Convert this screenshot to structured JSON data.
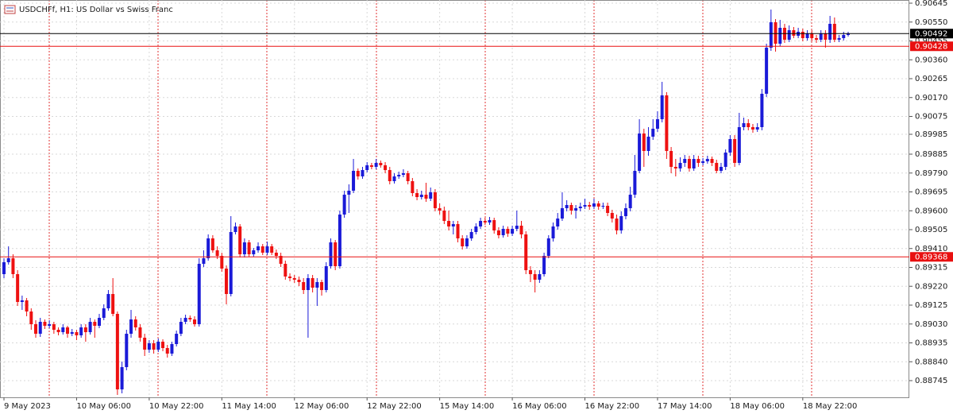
{
  "chart_data": {
    "type": "candlestick",
    "title": "USDCHFf, H1:  US Dollar vs Swiss Franc",
    "up_color": "#1a1ad8",
    "down_color": "#ee1111",
    "grid": true,
    "ylim": [
      0.88661,
      0.90661
    ],
    "yticks": [
      0.90645,
      {
        "value": 0.9055,
        "label": "0.90550"
      },
      0.90455,
      {
        "value": 0.9036,
        "label": "0.90360"
      },
      0.90265,
      {
        "value": 0.9017,
        "label": "0.90170"
      },
      0.90075,
      0.89985,
      0.89885,
      {
        "value": 0.8979,
        "label": "0.89790"
      },
      0.89695,
      {
        "value": 0.896,
        "label": "0.89600"
      },
      0.89505,
      {
        "value": 0.8941,
        "label": "0.89410"
      },
      0.89315,
      {
        "value": 0.8922,
        "label": "0.89220"
      },
      0.89125,
      {
        "value": 0.8903,
        "label": "0.89030"
      },
      0.88935,
      {
        "value": 0.8884,
        "label": "0.88840"
      },
      0.88745
    ],
    "price_lines": [
      {
        "value": 0.90492,
        "color": "#000000"
      },
      {
        "value": 0.90428,
        "color": "#e81010"
      },
      {
        "value": 0.89368,
        "color": "#e81010"
      }
    ],
    "categories": [
      "9 May 2023",
      null,
      null,
      null,
      null,
      null,
      null,
      null,
      null,
      null,
      null,
      null,
      null,
      null,
      null,
      null,
      "10 May 06:00",
      null,
      null,
      null,
      null,
      null,
      null,
      null,
      null,
      null,
      null,
      null,
      null,
      null,
      null,
      null,
      "10 May 22:00",
      null,
      null,
      null,
      null,
      null,
      null,
      null,
      null,
      null,
      null,
      null,
      null,
      null,
      null,
      null,
      "11 May 14:00",
      null,
      null,
      null,
      null,
      null,
      null,
      null,
      null,
      null,
      null,
      null,
      null,
      null,
      null,
      null,
      "12 May 06:00",
      null,
      null,
      null,
      null,
      null,
      null,
      null,
      null,
      null,
      null,
      null,
      null,
      null,
      null,
      null,
      "12 May 22:00",
      null,
      null,
      null,
      null,
      null,
      null,
      null,
      null,
      null,
      null,
      null,
      null,
      null,
      null,
      null,
      "15 May 14:00",
      null,
      null,
      null,
      null,
      null,
      null,
      null,
      null,
      null,
      null,
      null,
      null,
      null,
      null,
      null,
      "16 May 06:00",
      null,
      null,
      null,
      null,
      null,
      null,
      null,
      null,
      null,
      null,
      null,
      null,
      null,
      null,
      null,
      "16 May 22:00",
      null,
      null,
      null,
      null,
      null,
      null,
      null,
      null,
      null,
      null,
      null,
      null,
      null,
      null,
      null,
      "17 May 14:00",
      null,
      null,
      null,
      null,
      null,
      null,
      null,
      null,
      null,
      null,
      null,
      null,
      null,
      null,
      null,
      "18 May 06:00",
      null,
      null,
      null,
      null,
      null,
      null,
      null,
      null,
      null,
      null,
      null,
      null,
      null,
      null,
      null,
      "18 May 22:00",
      null,
      null,
      null,
      null,
      null,
      null,
      null,
      null,
      null,
      null
    ],
    "candles": [
      [
        0.89281,
        0.89361,
        0.89261,
        0.89341
      ],
      [
        0.89341,
        0.89421,
        0.89329,
        0.89361
      ],
      [
        0.89361,
        0.89381,
        0.89261,
        0.89281
      ],
      [
        0.89281,
        0.89301,
        0.89121,
        0.89141
      ],
      [
        0.89141,
        0.89173,
        0.89101,
        0.89149
      ],
      [
        0.89149,
        0.89161,
        0.89069,
        0.89093
      ],
      [
        0.89093,
        0.89109,
        0.89001,
        0.89029
      ],
      [
        0.89029,
        0.89049,
        0.88961,
        0.88981
      ],
      [
        0.88981,
        0.89061,
        0.88965,
        0.89041
      ],
      [
        0.89041,
        0.89053,
        0.89005,
        0.89021
      ],
      [
        0.89021,
        0.89049,
        0.89009,
        0.89029
      ],
      [
        0.89029,
        0.89041,
        0.88981,
        0.89001
      ],
      [
        0.89001,
        0.89013,
        0.88973,
        0.88989
      ],
      [
        0.88989,
        0.89029,
        0.88977,
        0.89013
      ],
      [
        0.89013,
        0.89021,
        0.88961,
        0.88981
      ],
      [
        0.88981,
        0.89005,
        0.88969,
        0.88989
      ],
      [
        0.88989,
        0.89001,
        0.88949,
        0.88973
      ],
      [
        0.88973,
        0.89029,
        0.88961,
        0.89013
      ],
      [
        0.89013,
        0.89029,
        0.88941,
        0.88989
      ],
      [
        0.88989,
        0.89061,
        0.88977,
        0.89041
      ],
      [
        0.89041,
        0.89053,
        0.88961,
        0.89021
      ],
      [
        0.89021,
        0.89081,
        0.89009,
        0.89061
      ],
      [
        0.89061,
        0.89129,
        0.89049,
        0.89109
      ],
      [
        0.89109,
        0.89201,
        0.89097,
        0.89181
      ],
      [
        0.89181,
        0.89261,
        0.89069,
        0.89081
      ],
      [
        0.89081,
        0.89093,
        0.88673,
        0.88701
      ],
      [
        0.88701,
        0.88841,
        0.88681,
        0.88813
      ],
      [
        0.88813,
        0.89001,
        0.88797,
        0.88981
      ],
      [
        0.88981,
        0.89101,
        0.88961,
        0.89053
      ],
      [
        0.89053,
        0.89069,
        0.88997,
        0.89013
      ],
      [
        0.89013,
        0.89029,
        0.88941,
        0.88961
      ],
      [
        0.88961,
        0.88981,
        0.88869,
        0.88901
      ],
      [
        0.88901,
        0.88949,
        0.88885,
        0.88933
      ],
      [
        0.88933,
        0.88949,
        0.88881,
        0.88901
      ],
      [
        0.88901,
        0.88957,
        0.88889,
        0.88941
      ],
      [
        0.88941,
        0.88953,
        0.88893,
        0.88909
      ],
      [
        0.88909,
        0.88925,
        0.88861,
        0.88881
      ],
      [
        0.88881,
        0.88941,
        0.88869,
        0.88929
      ],
      [
        0.88929,
        0.88997,
        0.88917,
        0.88981
      ],
      [
        0.88981,
        0.89061,
        0.88969,
        0.89041
      ],
      [
        0.89041,
        0.89077,
        0.89029,
        0.89061
      ],
      [
        0.89061,
        0.89073,
        0.89041,
        0.89053
      ],
      [
        0.89053,
        0.89069,
        0.89017,
        0.89029
      ],
      [
        0.89029,
        0.89361,
        0.89017,
        0.89333
      ],
      [
        0.89333,
        0.89401,
        0.89317,
        0.89361
      ],
      [
        0.89361,
        0.89481,
        0.89349,
        0.89461
      ],
      [
        0.89461,
        0.89477,
        0.89389,
        0.89401
      ],
      [
        0.89401,
        0.89421,
        0.89357,
        0.89373
      ],
      [
        0.89373,
        0.89389,
        0.89293,
        0.89309
      ],
      [
        0.89309,
        0.89325,
        0.89129,
        0.89181
      ],
      [
        0.89181,
        0.89573,
        0.89169,
        0.89493
      ],
      [
        0.89493,
        0.89541,
        0.89481,
        0.89521
      ],
      [
        0.89521,
        0.89533,
        0.89365,
        0.89381
      ],
      [
        0.89381,
        0.89461,
        0.89365,
        0.89441
      ],
      [
        0.89441,
        0.89453,
        0.89369,
        0.89381
      ],
      [
        0.89381,
        0.89413,
        0.89369,
        0.89401
      ],
      [
        0.89401,
        0.89441,
        0.89389,
        0.89421
      ],
      [
        0.89421,
        0.89433,
        0.89377,
        0.89389
      ],
      [
        0.89389,
        0.89445,
        0.89377,
        0.89421
      ],
      [
        0.89421,
        0.89433,
        0.89377,
        0.89389
      ],
      [
        0.89389,
        0.89405,
        0.89357,
        0.89373
      ],
      [
        0.89373,
        0.89389,
        0.89317,
        0.89333
      ],
      [
        0.89333,
        0.89349,
        0.89253,
        0.89269
      ],
      [
        0.89269,
        0.89285,
        0.89245,
        0.89261
      ],
      [
        0.89261,
        0.89277,
        0.89237,
        0.89253
      ],
      [
        0.89253,
        0.89269,
        0.89221,
        0.89241
      ],
      [
        0.89241,
        0.89261,
        0.89181,
        0.89201
      ],
      [
        0.89201,
        0.89281,
        0.88961,
        0.89261
      ],
      [
        0.89261,
        0.89277,
        0.89189,
        0.89213
      ],
      [
        0.89213,
        0.89261,
        0.89121,
        0.89241
      ],
      [
        0.89241,
        0.89253,
        0.89173,
        0.89201
      ],
      [
        0.89201,
        0.89341,
        0.89189,
        0.89321
      ],
      [
        0.89321,
        0.89461,
        0.89309,
        0.89441
      ],
      [
        0.89441,
        0.89453,
        0.89301,
        0.89321
      ],
      [
        0.89321,
        0.89601,
        0.89309,
        0.89581
      ],
      [
        0.89581,
        0.89701,
        0.89565,
        0.89681
      ],
      [
        0.89681,
        0.89733,
        0.89589,
        0.89701
      ],
      [
        0.89701,
        0.89861,
        0.89689,
        0.89801
      ],
      [
        0.89801,
        0.89813,
        0.89757,
        0.89773
      ],
      [
        0.89773,
        0.89821,
        0.89761,
        0.89805
      ],
      [
        0.89805,
        0.89845,
        0.89793,
        0.89829
      ],
      [
        0.89829,
        0.89841,
        0.89809,
        0.89821
      ],
      [
        0.89821,
        0.89861,
        0.89809,
        0.89841
      ],
      [
        0.89841,
        0.89853,
        0.89817,
        0.89829
      ],
      [
        0.89829,
        0.89845,
        0.89789,
        0.89805
      ],
      [
        0.89805,
        0.89821,
        0.89733,
        0.89749
      ],
      [
        0.89749,
        0.89789,
        0.89737,
        0.89773
      ],
      [
        0.89773,
        0.89797,
        0.89761,
        0.89781
      ],
      [
        0.89781,
        0.89809,
        0.89769,
        0.89789
      ],
      [
        0.89789,
        0.89801,
        0.89733,
        0.89749
      ],
      [
        0.89749,
        0.89765,
        0.89673,
        0.89689
      ],
      [
        0.89689,
        0.89709,
        0.89653,
        0.89669
      ],
      [
        0.89669,
        0.89701,
        0.89657,
        0.89681
      ],
      [
        0.89681,
        0.89741,
        0.89645,
        0.89661
      ],
      [
        0.89661,
        0.89717,
        0.89649,
        0.89693
      ],
      [
        0.89693,
        0.89709,
        0.89597,
        0.89613
      ],
      [
        0.89613,
        0.89637,
        0.89581,
        0.89601
      ],
      [
        0.89601,
        0.89621,
        0.89533,
        0.89549
      ],
      [
        0.89549,
        0.89601,
        0.89501,
        0.89521
      ],
      [
        0.89521,
        0.89549,
        0.89481,
        0.89533
      ],
      [
        0.89533,
        0.89549,
        0.89441,
        0.89461
      ],
      [
        0.89461,
        0.89477,
        0.89405,
        0.89421
      ],
      [
        0.89421,
        0.89477,
        0.89409,
        0.89461
      ],
      [
        0.89461,
        0.89509,
        0.89449,
        0.89493
      ],
      [
        0.89493,
        0.89537,
        0.89481,
        0.89521
      ],
      [
        0.89521,
        0.89565,
        0.89509,
        0.89549
      ],
      [
        0.89549,
        0.89565,
        0.89529,
        0.89541
      ],
      [
        0.89541,
        0.89569,
        0.89529,
        0.89553
      ],
      [
        0.89553,
        0.89565,
        0.89485,
        0.89501
      ],
      [
        0.89501,
        0.89517,
        0.89461,
        0.89477
      ],
      [
        0.89477,
        0.89525,
        0.89465,
        0.89509
      ],
      [
        0.89509,
        0.89521,
        0.89469,
        0.89485
      ],
      [
        0.89485,
        0.89525,
        0.89473,
        0.89509
      ],
      [
        0.89509,
        0.89601,
        0.89497,
        0.89525
      ],
      [
        0.89525,
        0.89549,
        0.89461,
        0.89481
      ],
      [
        0.89481,
        0.89497,
        0.89281,
        0.89301
      ],
      [
        0.89301,
        0.89321,
        0.89241,
        0.89281
      ],
      [
        0.89281,
        0.89301,
        0.89189,
        0.89253
      ],
      [
        0.89253,
        0.89301,
        0.89237,
        0.89281
      ],
      [
        0.89281,
        0.89389,
        0.89269,
        0.89373
      ],
      [
        0.89373,
        0.89477,
        0.89361,
        0.89461
      ],
      [
        0.89461,
        0.89541,
        0.89445,
        0.89521
      ],
      [
        0.89521,
        0.89589,
        0.89505,
        0.89561
      ],
      [
        0.89561,
        0.89693,
        0.89549,
        0.89613
      ],
      [
        0.89613,
        0.89653,
        0.89597,
        0.89629
      ],
      [
        0.89629,
        0.89641,
        0.89581,
        0.89601
      ],
      [
        0.89601,
        0.89629,
        0.89561,
        0.89613
      ],
      [
        0.89613,
        0.89641,
        0.89597,
        0.89621
      ],
      [
        0.89621,
        0.89661,
        0.89609,
        0.89629
      ],
      [
        0.89629,
        0.89645,
        0.89605,
        0.89621
      ],
      [
        0.89621,
        0.89661,
        0.89609,
        0.89637
      ],
      [
        0.89637,
        0.89649,
        0.89605,
        0.89621
      ],
      [
        0.89621,
        0.89641,
        0.89609,
        0.89625
      ],
      [
        0.89625,
        0.89641,
        0.89573,
        0.89589
      ],
      [
        0.89589,
        0.89605,
        0.89541,
        0.89561
      ],
      [
        0.89561,
        0.89581,
        0.89481,
        0.89501
      ],
      [
        0.89501,
        0.89597,
        0.89485,
        0.89573
      ],
      [
        0.89573,
        0.89637,
        0.89557,
        0.89613
      ],
      [
        0.89613,
        0.89721,
        0.89597,
        0.89681
      ],
      [
        0.89681,
        0.89881,
        0.89665,
        0.89801
      ],
      [
        0.89801,
        0.90061,
        0.89789,
        0.89989
      ],
      [
        0.89989,
        0.90013,
        0.89821,
        0.89901
      ],
      [
        0.89901,
        0.90021,
        0.89877,
        0.89973
      ],
      [
        0.89973,
        0.90061,
        0.89957,
        0.90013
      ],
      [
        0.90013,
        0.90101,
        0.89997,
        0.90061
      ],
      [
        0.90061,
        0.90249,
        0.90045,
        0.90181
      ],
      [
        0.90181,
        0.90197,
        0.89861,
        0.89901
      ],
      [
        0.89901,
        0.89921,
        0.89789,
        0.89821
      ],
      [
        0.89821,
        0.89861,
        0.89773,
        0.89813
      ],
      [
        0.89813,
        0.89869,
        0.89797,
        0.89841
      ],
      [
        0.89841,
        0.89881,
        0.89821,
        0.89861
      ],
      [
        0.89861,
        0.89877,
        0.89797,
        0.89813
      ],
      [
        0.89813,
        0.89881,
        0.89801,
        0.89861
      ],
      [
        0.89861,
        0.89877,
        0.89821,
        0.89841
      ],
      [
        0.89841,
        0.89865,
        0.89829,
        0.89849
      ],
      [
        0.89849,
        0.89877,
        0.89837,
        0.89861
      ],
      [
        0.89861,
        0.89873,
        0.89825,
        0.89841
      ],
      [
        0.89841,
        0.89857,
        0.89789,
        0.89801
      ],
      [
        0.89801,
        0.89841,
        0.89789,
        0.89821
      ],
      [
        0.89821,
        0.89909,
        0.89805,
        0.89893
      ],
      [
        0.89893,
        0.89981,
        0.89877,
        0.89961
      ],
      [
        0.89961,
        0.89981,
        0.89821,
        0.89841
      ],
      [
        0.89841,
        0.90093,
        0.89829,
        0.90021
      ],
      [
        0.90021,
        0.90069,
        0.90005,
        0.90041
      ],
      [
        0.90041,
        0.90061,
        0.90005,
        0.90021
      ],
      [
        0.90021,
        0.90037,
        0.89993,
        0.90009
      ],
      [
        0.90009,
        0.90041,
        0.89997,
        0.90021
      ],
      [
        0.90021,
        0.90213,
        0.90005,
        0.90189
      ],
      [
        0.90189,
        0.90441,
        0.90173,
        0.90421
      ],
      [
        0.90421,
        0.90613,
        0.90405,
        0.90549
      ],
      [
        0.90549,
        0.90565,
        0.90401,
        0.90441
      ],
      [
        0.90441,
        0.90561,
        0.90429,
        0.90521
      ],
      [
        0.90521,
        0.90541,
        0.90445,
        0.90461
      ],
      [
        0.90461,
        0.90533,
        0.90449,
        0.90509
      ],
      [
        0.90509,
        0.90525,
        0.90469,
        0.90481
      ],
      [
        0.90481,
        0.90521,
        0.90469,
        0.90501
      ],
      [
        0.90501,
        0.90517,
        0.90453,
        0.90469
      ],
      [
        0.90469,
        0.90509,
        0.90457,
        0.90493
      ],
      [
        0.90493,
        0.90509,
        0.90453,
        0.90469
      ],
      [
        0.90469,
        0.90485,
        0.90445,
        0.90461
      ],
      [
        0.90461,
        0.90509,
        0.90449,
        0.90493
      ],
      [
        0.90493,
        0.90509,
        0.90421,
        0.90461
      ],
      [
        0.90461,
        0.90581,
        0.90445,
        0.90541
      ],
      [
        0.90541,
        0.90573,
        0.90449,
        0.90461
      ],
      [
        0.90461,
        0.90485,
        0.90449,
        0.90469
      ],
      [
        0.90469,
        0.90501,
        0.90457,
        0.90485
      ],
      [
        0.90485,
        0.90501,
        0.90477,
        0.90492
      ]
    ]
  }
}
